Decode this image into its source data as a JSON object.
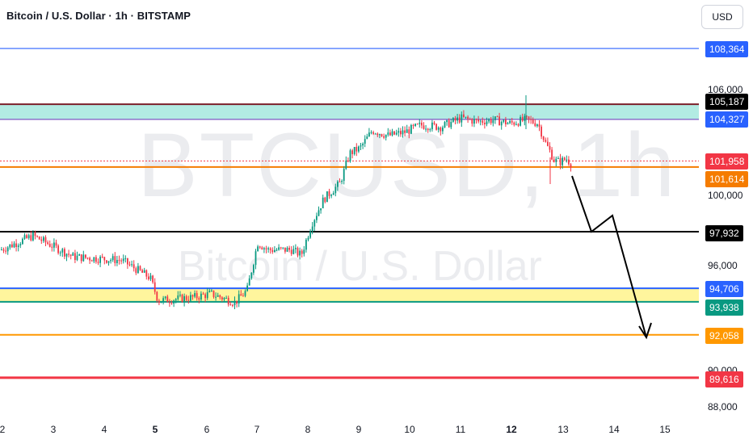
{
  "header": {
    "title": "Bitcoin / U.S. Dollar · 1h · BITSTAMP"
  },
  "watermark": {
    "ticker": "BTCUSD, 1h",
    "name": "Bitcoin / U.S. Dollar"
  },
  "currency_button": "USD",
  "price_ticks": [
    "106,000",
    "100,000",
    "96,000",
    "90,000",
    "88,000"
  ],
  "price_labels": [
    {
      "value": "108,364",
      "color": "#2962ff"
    },
    {
      "value": "105,187",
      "color": "#000000"
    },
    {
      "value": "104,327",
      "color": "#2962ff"
    },
    {
      "value": "101,958",
      "color": "#f23645"
    },
    {
      "value": "101,614",
      "color": "#f57c00"
    },
    {
      "value": "97,932",
      "color": "#000000"
    },
    {
      "value": "94,706",
      "color": "#2962ff"
    },
    {
      "value": "93,938",
      "color": "#089981"
    },
    {
      "value": "92,058",
      "color": "#ff9800"
    },
    {
      "value": "89,616",
      "color": "#f23645"
    }
  ],
  "time_ticks": [
    {
      "label": "2",
      "bold": false
    },
    {
      "label": "3",
      "bold": false
    },
    {
      "label": "4",
      "bold": false
    },
    {
      "label": "5",
      "bold": true
    },
    {
      "label": "6",
      "bold": false
    },
    {
      "label": "7",
      "bold": false
    },
    {
      "label": "8",
      "bold": false
    },
    {
      "label": "9",
      "bold": false
    },
    {
      "label": "10",
      "bold": false
    },
    {
      "label": "11",
      "bold": false
    },
    {
      "label": "12",
      "bold": true
    },
    {
      "label": "13",
      "bold": false
    },
    {
      "label": "14",
      "bold": false
    },
    {
      "label": "15",
      "bold": false
    }
  ],
  "colors": {
    "up": "#089981",
    "down": "#f23645",
    "zone_top": "#b2ebe3",
    "zone_bottom": "#fff59d"
  }
}
